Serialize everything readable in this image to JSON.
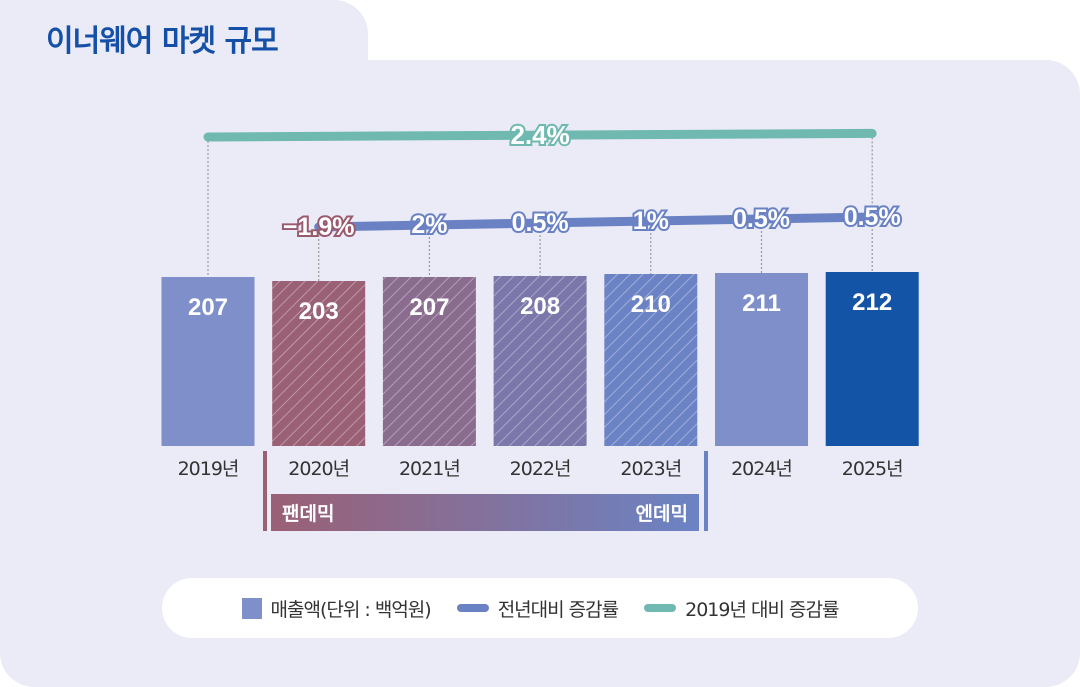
{
  "title": "이너웨어 마켓 규모",
  "chart_data": {
    "type": "bar",
    "title": "이너웨어 마켓 규모",
    "categories": [
      "2019년",
      "2020년",
      "2021년",
      "2022년",
      "2023년",
      "2024년",
      "2025년"
    ],
    "series": [
      {
        "name": "매출액(단위 : 백억원)",
        "type": "bar",
        "values": [
          207,
          203,
          207,
          208,
          210,
          211,
          212
        ],
        "labels": [
          "207",
          "203",
          "207",
          "208",
          "210",
          "211",
          "212"
        ]
      },
      {
        "name": "전년대비 증감률",
        "type": "line",
        "values": [
          null,
          -1.9,
          2,
          0.5,
          1,
          0.5,
          0.5
        ],
        "labels": [
          "",
          "−1.9%",
          "2%",
          "0.5%",
          "1%",
          "0.5%",
          "0.5%"
        ]
      },
      {
        "name": "2019년 대비 증감률",
        "type": "line",
        "from": "2019년",
        "to": "2025년",
        "value": 2.4,
        "label": "2.4%"
      }
    ],
    "hatched_categories": [
      "2020년",
      "2021년",
      "2022년",
      "2023년"
    ],
    "period_band": {
      "start_label": "팬데믹",
      "end_label": "엔데믹"
    },
    "colors": {
      "bar": "#7e8fc9",
      "bar_highlight": "#1454a6",
      "pandemic": "#9a6075",
      "endemic": "#6b83c4",
      "yoy_line": "#6a82c4",
      "total_line": "#6fb9b0",
      "negative": "#9a5a6e"
    },
    "legend_position": "bottom"
  }
}
